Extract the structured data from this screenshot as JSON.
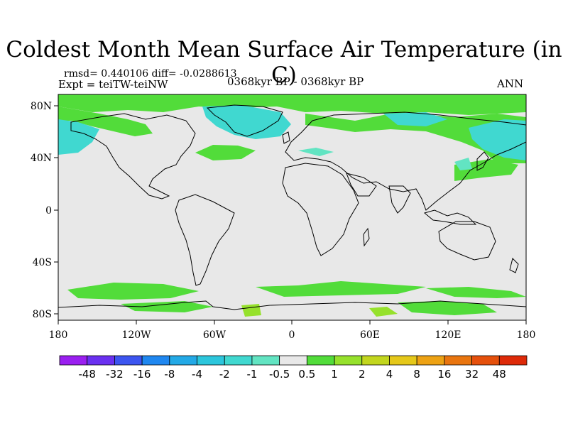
{
  "title": "Coldest Month Mean Surface Air Temperature (in C)",
  "stats": "rmsd= 0.440106  diff= -0.0288613",
  "expt": "Expt = teiTW-teiNW",
  "period": "0368kyr BP - 0368kyr BP",
  "season": "ANN",
  "axes": {
    "x_ticks": [
      "180",
      "120W",
      "60W",
      "0",
      "60E",
      "120E",
      "180"
    ],
    "y_ticks": [
      "80N",
      "40N",
      "0",
      "40S",
      "80S"
    ]
  },
  "colorbar": {
    "labels": [
      "-48",
      "-32",
      "-16",
      "-8",
      "-4",
      "-2",
      "-1",
      "-0.5",
      "0.5",
      "1",
      "2",
      "4",
      "8",
      "16",
      "32",
      "48"
    ],
    "colors": [
      "#9a1ff0",
      "#6a30f0",
      "#3c55f0",
      "#1f87f0",
      "#23a9e6",
      "#2cc6dc",
      "#40d8d0",
      "#62e4c2",
      "#e8e8e8",
      "#52dc3a",
      "#96e12c",
      "#c2d61e",
      "#e5c81a",
      "#eda214",
      "#e9750f",
      "#e5500c",
      "#de2a09"
    ]
  }
}
